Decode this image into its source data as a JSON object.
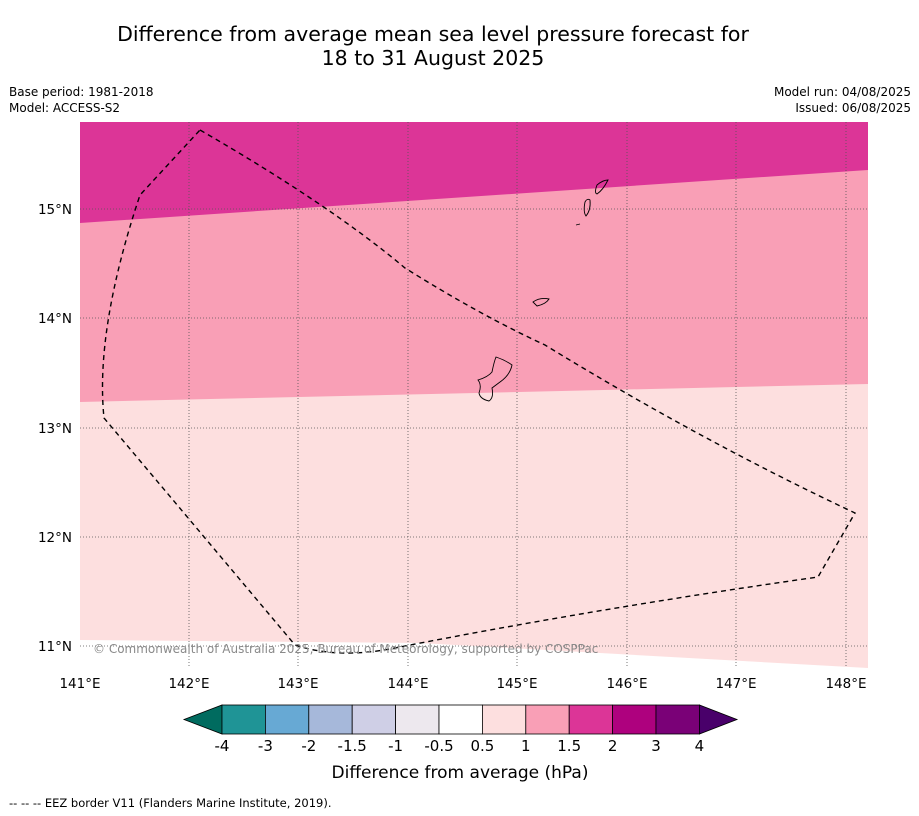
{
  "header": {
    "title_line1": "Difference from average mean sea level pressure forecast for",
    "title_line2": "18 to 31 August 2025",
    "base_period": "Base period: 1981-2018",
    "model": "Model: ACCESS-S2",
    "model_run": "Model run: 04/08/2025",
    "issued": "Issued: 06/08/2025"
  },
  "map": {
    "lon_labels": [
      "141°E",
      "142°E",
      "143°E",
      "144°E",
      "145°E",
      "146°E",
      "147°E",
      "148°E"
    ],
    "lat_labels": [
      "15°N",
      "14°N",
      "13°N",
      "12°N",
      "11°N"
    ],
    "copyright": "© Commonwealth of Australia 2025, Bureau of Meteorology, supported by COSPPac",
    "regions": [
      {
        "range": "1.5 to 2",
        "color": "#dc3597"
      },
      {
        "range": "1 to 1.5",
        "color": "#f99fb6"
      },
      {
        "range": "0.5 to 1",
        "color": "#fddfdf"
      }
    ]
  },
  "colorbar": {
    "colors": [
      "#006b5f",
      "#1f9496",
      "#67a9d4",
      "#a6b8da",
      "#cfcfe6",
      "#ede8ee",
      "#ffffff",
      "#fddfdf",
      "#f99fb6",
      "#dc3597",
      "#ae017e",
      "#7a0177",
      "#49006a"
    ],
    "tick_labels": [
      "-4",
      "-3",
      "-2",
      "-1.5",
      "-1",
      "-0.5",
      "0.5",
      "1",
      "1.5",
      "2",
      "3",
      "4"
    ],
    "title": "Difference from average (hPa)"
  },
  "footnote": "--  --  -- EEZ border V11 (Flanders Marine Institute, 2019)."
}
